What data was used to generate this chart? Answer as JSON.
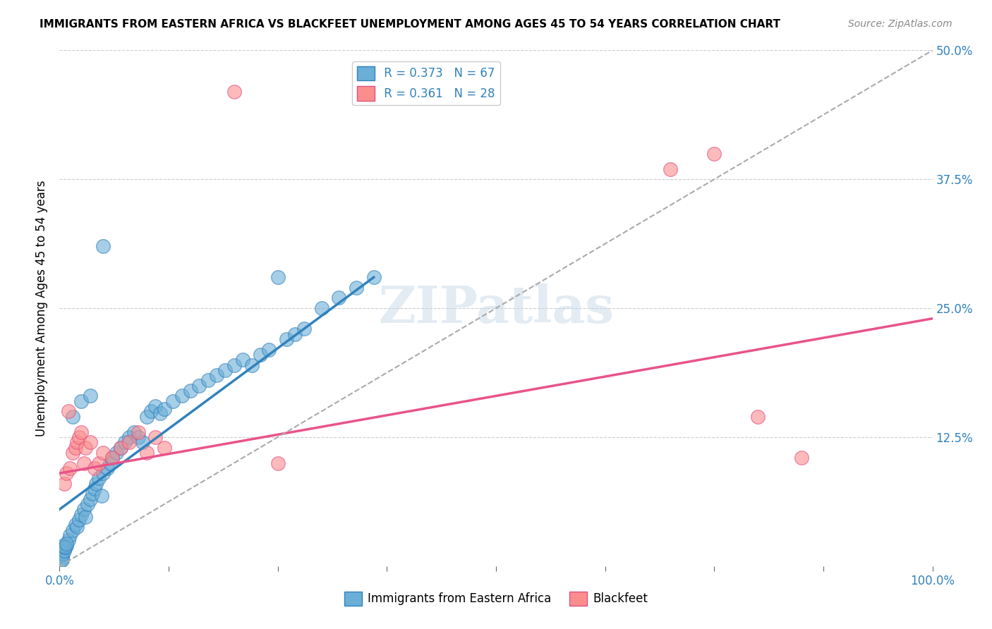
{
  "title": "IMMIGRANTS FROM EASTERN AFRICA VS BLACKFEET UNEMPLOYMENT AMONG AGES 45 TO 54 YEARS CORRELATION CHART",
  "source": "Source: ZipAtlas.com",
  "ylabel": "Unemployment Among Ages 45 to 54 years",
  "xlim": [
    0,
    1.0
  ],
  "ylim": [
    0,
    0.5
  ],
  "xticks": [
    0.0,
    0.125,
    0.25,
    0.375,
    0.5,
    0.625,
    0.75,
    0.875,
    1.0
  ],
  "xticklabels": [
    "0.0%",
    "",
    "",
    "",
    "",
    "",
    "",
    "",
    "100.0%"
  ],
  "yticks": [
    0.0,
    0.125,
    0.25,
    0.375,
    0.5
  ],
  "yticklabels": [
    "",
    "12.5%",
    "25.0%",
    "37.5%",
    "50.0%"
  ],
  "blue_color": "#6baed6",
  "pink_color": "#fc8d8d",
  "blue_line_color": "#3182bd",
  "pink_line_color": "#e9538a",
  "dashed_line_color": "#aaaaaa",
  "legend_R1": "R = 0.373",
  "legend_N1": "N = 67",
  "legend_R2": "R = 0.361",
  "legend_N2": "N = 28",
  "watermark": "ZIPatlas",
  "blue_scatter_x": [
    0.002,
    0.003,
    0.001,
    0.004,
    0.003,
    0.005,
    0.006,
    0.008,
    0.01,
    0.012,
    0.015,
    0.018,
    0.02,
    0.022,
    0.025,
    0.028,
    0.03,
    0.032,
    0.035,
    0.038,
    0.04,
    0.042,
    0.045,
    0.048,
    0.05,
    0.055,
    0.058,
    0.06,
    0.065,
    0.07,
    0.075,
    0.08,
    0.085,
    0.09,
    0.095,
    0.1,
    0.105,
    0.11,
    0.115,
    0.12,
    0.13,
    0.14,
    0.15,
    0.16,
    0.17,
    0.18,
    0.19,
    0.2,
    0.21,
    0.22,
    0.23,
    0.24,
    0.25,
    0.26,
    0.27,
    0.28,
    0.3,
    0.32,
    0.34,
    0.36,
    0.004,
    0.006,
    0.008,
    0.015,
    0.025,
    0.035,
    0.05
  ],
  "blue_scatter_y": [
    0.01,
    0.008,
    0.005,
    0.012,
    0.006,
    0.015,
    0.018,
    0.02,
    0.025,
    0.03,
    0.035,
    0.04,
    0.038,
    0.045,
    0.05,
    0.055,
    0.048,
    0.06,
    0.065,
    0.07,
    0.075,
    0.08,
    0.085,
    0.068,
    0.09,
    0.095,
    0.1,
    0.105,
    0.11,
    0.115,
    0.12,
    0.125,
    0.13,
    0.125,
    0.12,
    0.145,
    0.15,
    0.155,
    0.148,
    0.152,
    0.16,
    0.165,
    0.17,
    0.175,
    0.18,
    0.185,
    0.19,
    0.195,
    0.2,
    0.195,
    0.205,
    0.21,
    0.28,
    0.22,
    0.225,
    0.23,
    0.25,
    0.26,
    0.27,
    0.28,
    0.02,
    0.018,
    0.022,
    0.145,
    0.16,
    0.165,
    0.31
  ],
  "pink_scatter_x": [
    0.005,
    0.008,
    0.01,
    0.012,
    0.015,
    0.018,
    0.02,
    0.022,
    0.025,
    0.028,
    0.03,
    0.035,
    0.04,
    0.045,
    0.05,
    0.06,
    0.07,
    0.08,
    0.09,
    0.1,
    0.11,
    0.12,
    0.2,
    0.25,
    0.7,
    0.75,
    0.8,
    0.85
  ],
  "pink_scatter_y": [
    0.08,
    0.09,
    0.15,
    0.095,
    0.11,
    0.115,
    0.12,
    0.125,
    0.13,
    0.1,
    0.115,
    0.12,
    0.095,
    0.1,
    0.11,
    0.105,
    0.115,
    0.12,
    0.13,
    0.11,
    0.125,
    0.115,
    0.46,
    0.1,
    0.385,
    0.4,
    0.145,
    0.105
  ],
  "blue_trend_x": [
    0.0,
    0.36
  ],
  "blue_trend_y": [
    0.055,
    0.28
  ],
  "pink_trend_x": [
    0.0,
    1.0
  ],
  "pink_trend_y": [
    0.09,
    0.24
  ],
  "dashed_trend_x": [
    0.0,
    1.0
  ],
  "dashed_trend_y": [
    0.0,
    0.5
  ]
}
